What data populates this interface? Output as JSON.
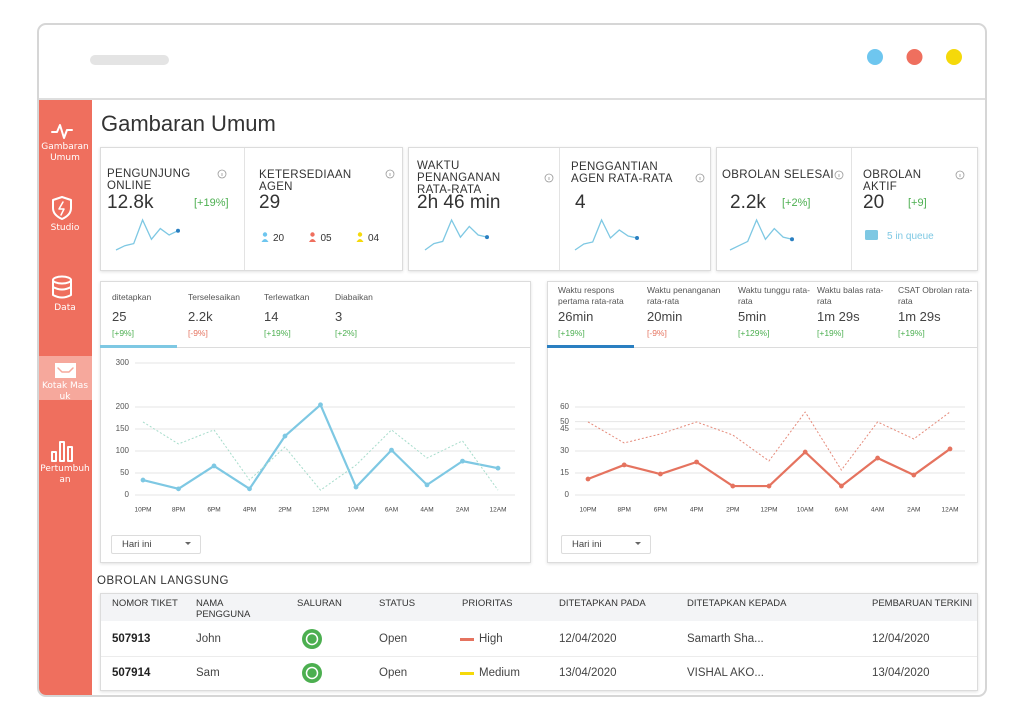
{
  "browser": {
    "dots": [
      "#6ec6ef",
      "#ef6f5e",
      "#f5d90a"
    ]
  },
  "sidebar": [
    {
      "label": "Gambaran Umum"
    },
    {
      "label": "Studio"
    },
    {
      "label": "Data"
    },
    {
      "label": "Kotak Masuk",
      "active": true
    },
    {
      "label": "Pertumbuhan"
    }
  ],
  "title": "Gambaran Umum",
  "cards": [
    [
      {
        "label": "PENGUNJUNG ONLINE",
        "value": "12.8k",
        "change": "[+19%]",
        "sparkline": [
          0,
          2,
          3,
          14,
          5,
          10,
          7,
          9
        ]
      },
      {
        "label": "KETERSEDIAAN AGEN",
        "value": "29",
        "agents": [
          {
            "count": "20",
            "color": "#6ec6ef"
          },
          {
            "count": "05",
            "color": "#ef6f5e"
          },
          {
            "count": "04",
            "color": "#f5d90a"
          }
        ]
      }
    ],
    [
      {
        "label": "WAKTU PENANGANAN RATA-RATA",
        "value": "2h 46 min",
        "sparkline": [
          0,
          3,
          4,
          14,
          6,
          11,
          7,
          6
        ]
      },
      {
        "label": "PENGGANTIAN AGEN RATA-RATA",
        "value": "4",
        "sparkline": [
          0,
          3,
          4,
          15,
          6,
          10,
          7,
          6
        ]
      }
    ],
    [
      {
        "label": "OBROLAN SELESAI",
        "value": "2.2k",
        "change": "[+2%]",
        "sparkline": [
          0,
          2,
          4,
          14,
          5,
          10,
          6,
          5
        ]
      },
      {
        "label": "OBROLAN AKTIF",
        "value": "20",
        "change": "[+9]",
        "queue": "5 in queue"
      }
    ]
  ],
  "charts": [
    {
      "type": "line",
      "tab_accent": "#7ec8e3",
      "tabs": [
        {
          "label": "ditetapkan",
          "value": "25",
          "change": "[+9%]"
        },
        {
          "label": "Terselesaikan",
          "value": "2.2k",
          "change": "[-9%]"
        },
        {
          "label": "Terlewatkan",
          "value": "14",
          "change": "[+19%]"
        },
        {
          "label": "Diabaikan",
          "value": "3",
          "change": "[+2%]"
        }
      ],
      "categories": [
        "10PM",
        "8PM",
        "6PM",
        "4PM",
        "2PM",
        "12PM",
        "10AM",
        "6AM",
        "4AM",
        "2AM",
        "12AM"
      ],
      "series": [
        {
          "color": "#7ec8e3",
          "style": "solid",
          "values": [
            34,
            14,
            66,
            14,
            134,
            205,
            18,
            102,
            23,
            77,
            61
          ]
        },
        {
          "color": "#a6dccb",
          "style": "dotted",
          "values": [
            166,
            116,
            148,
            34,
            109,
            11,
            68,
            148,
            84,
            123,
            11
          ]
        }
      ],
      "ylim": [
        0,
        300
      ],
      "yticks": [
        0,
        50,
        100,
        150,
        200,
        300
      ],
      "grid": true,
      "dropdown": "Hari ini"
    },
    {
      "type": "line",
      "tab_accent": "#2a7fc1",
      "tabs": [
        {
          "label": "Waktu respons pertama rata-rata",
          "value": "26min",
          "change": "[+19%]"
        },
        {
          "label": "Waktu penanganan rata-rata",
          "value": "20min",
          "change": "[-9%]"
        },
        {
          "label": "Waktu tunggu rata-rata",
          "value": "5min",
          "change": "[+129%]"
        },
        {
          "label": "Waktu balas rata-rata",
          "value": "1m 29s",
          "change": "[+19%]"
        },
        {
          "label": "CSAT Obrolan rata-rata",
          "value": "1m 29s",
          "change": "[+19%]"
        }
      ],
      "categories": [
        "10PM",
        "8PM",
        "6PM",
        "4PM",
        "2PM",
        "12PM",
        "10AM",
        "6AM",
        "4AM",
        "2AM",
        "12AM"
      ],
      "series": [
        {
          "color": "#e5735f",
          "style": "solid",
          "values": [
            10.9,
            20.5,
            14.3,
            22.5,
            6.1,
            6.1,
            29.3,
            6.1,
            25.2,
            13.6,
            31.4
          ]
        },
        {
          "color": "#e58a7a",
          "style": "dotted",
          "values": [
            49.8,
            35.5,
            41.6,
            49.8,
            40.9,
            23.2,
            56.6,
            17,
            49.8,
            38.2,
            56.6
          ]
        }
      ],
      "ylim": [
        0,
        60
      ],
      "yticks": [
        0,
        15,
        30,
        45,
        50,
        60
      ],
      "grid": true,
      "dropdown": "Hari ini"
    }
  ],
  "live_chats": {
    "title": "OBROLAN LANGSUNG",
    "columns": [
      "NOMOR TIKET",
      "NAMA PENGGUNA",
      "SALURAN",
      "STATUS",
      "PRIORITAS",
      "DITETAPKAN PADA",
      "DITETAPKAN KEPADA",
      "PEMBARUAN TERKINI"
    ],
    "rows": [
      {
        "ticket": "507913",
        "user": "John",
        "status": "Open",
        "priority": "High",
        "priority_color": "#e5735f",
        "assigned_at": "12/04/2020",
        "assigned_to": "Samarth Sha...",
        "updated": "12/04/2020"
      },
      {
        "ticket": "507914",
        "user": "Sam",
        "status": "Open",
        "priority": "Medium",
        "priority_color": "#f5d90a",
        "assigned_at": "13/04/2020",
        "assigned_to": "VISHAL AKO...",
        "updated": "13/04/2020"
      }
    ]
  }
}
